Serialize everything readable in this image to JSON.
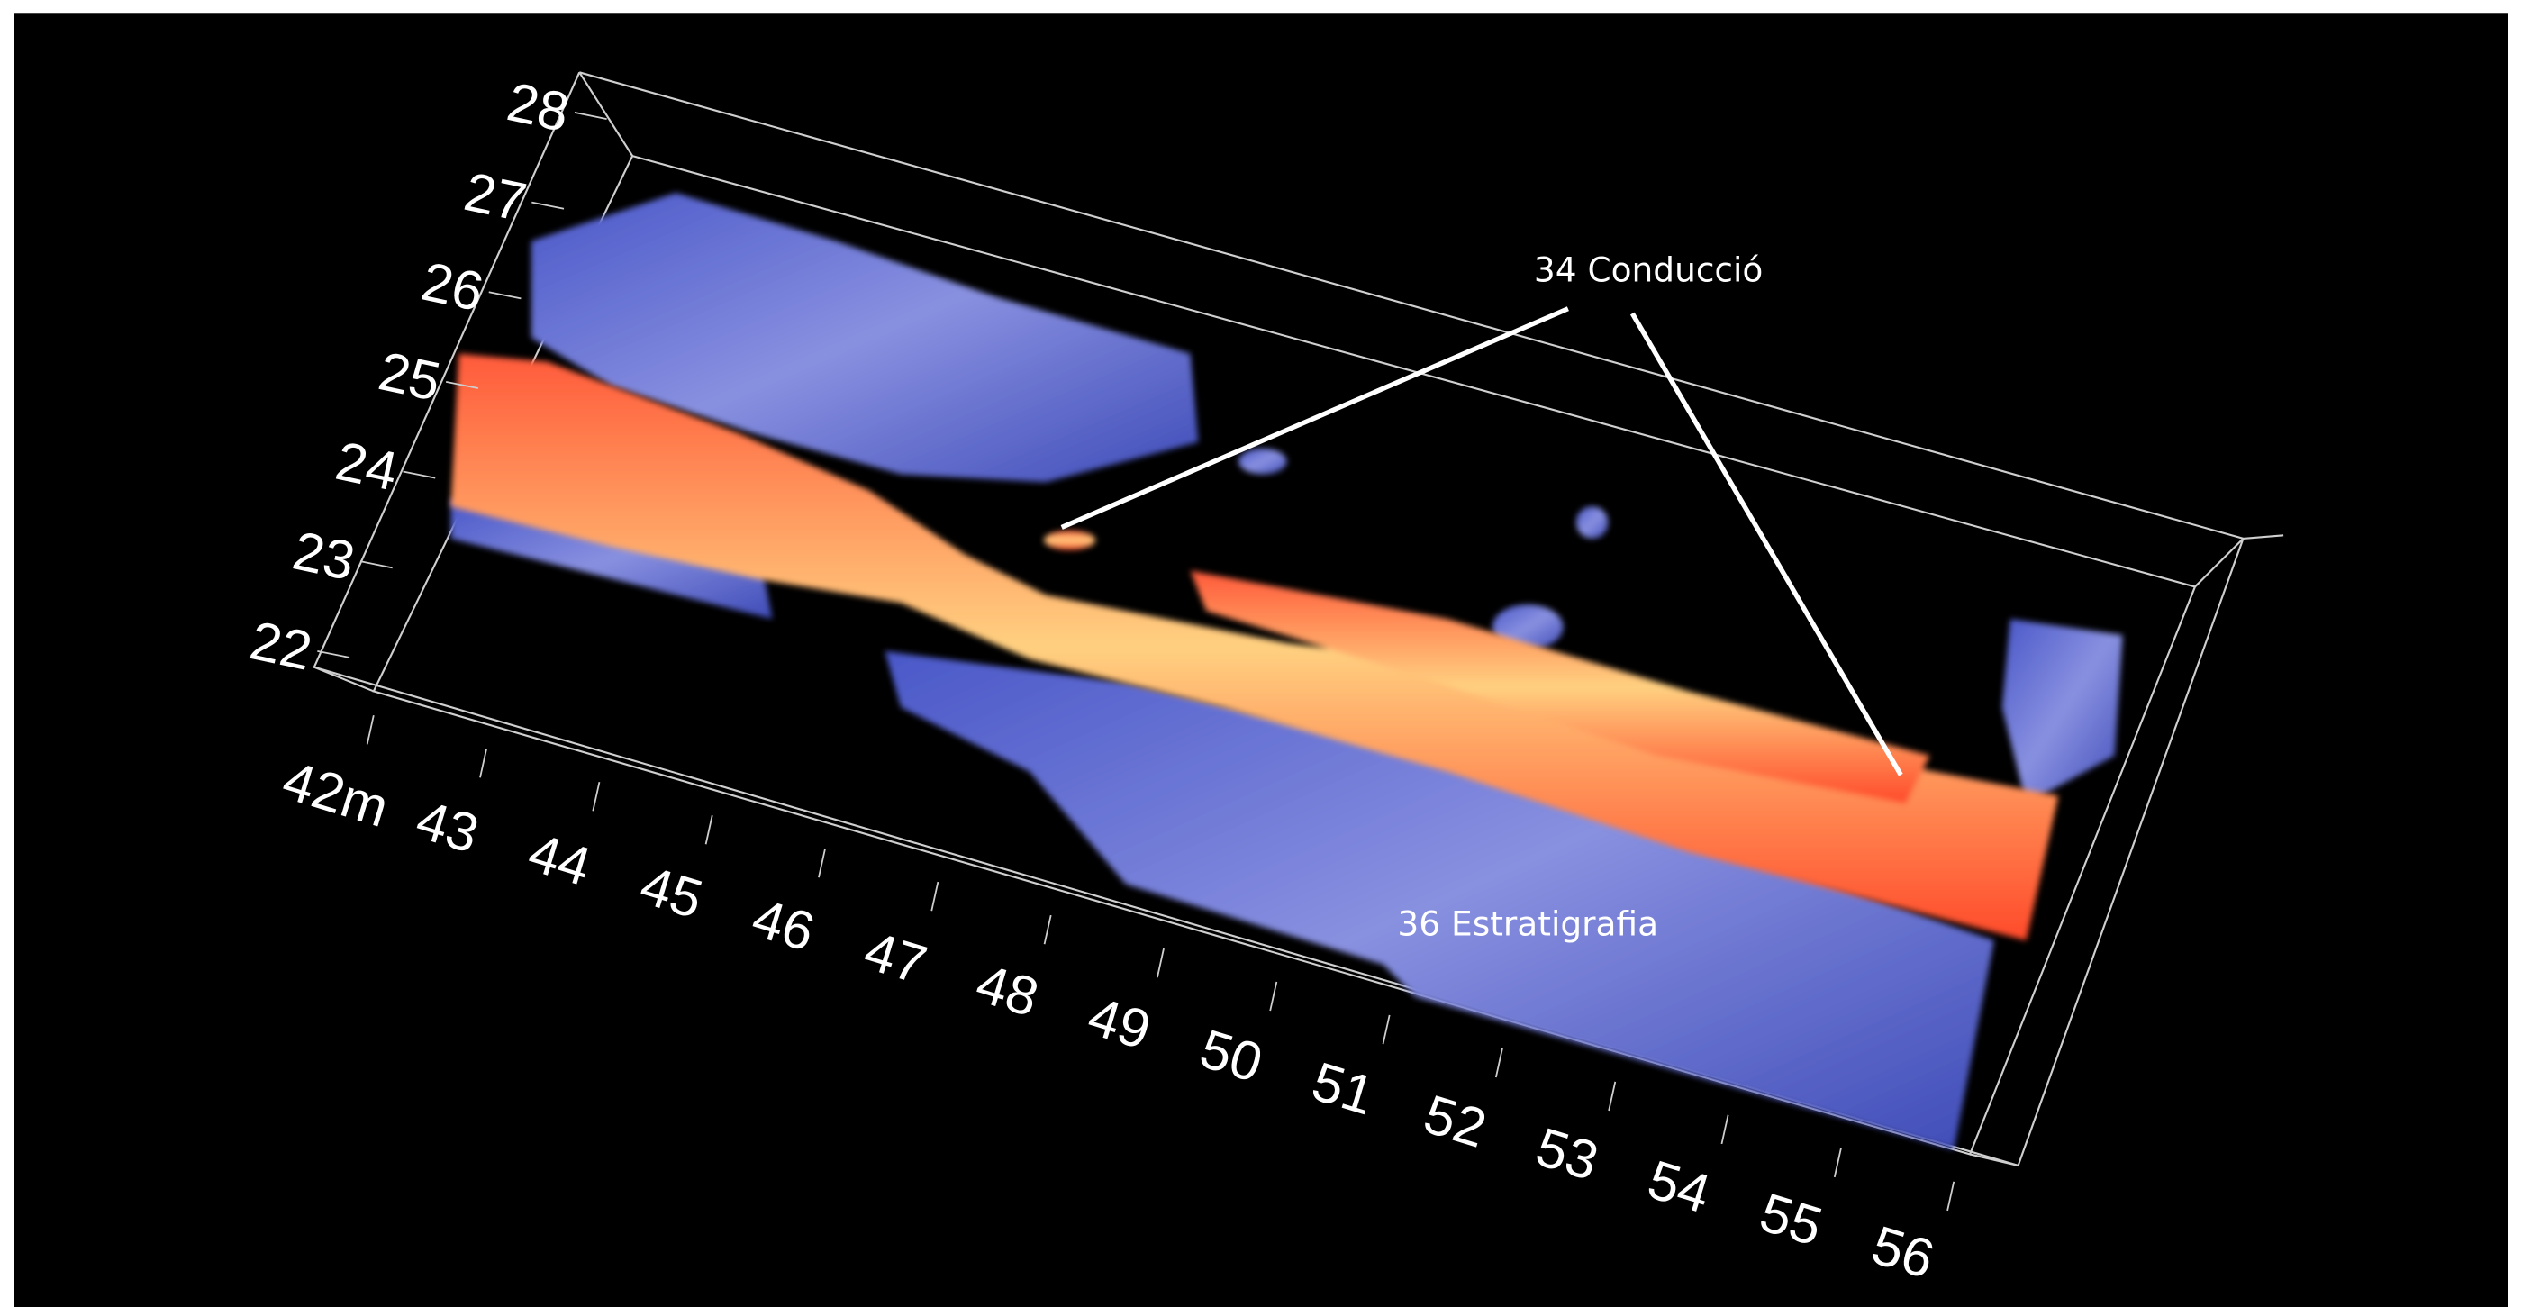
{
  "y_axis": {
    "labels": [
      "28",
      "27",
      "26",
      "25",
      "24",
      "23",
      "22"
    ]
  },
  "x_axis": {
    "labels": [
      "42m",
      "43",
      "44",
      "45",
      "46",
      "47",
      "48",
      "49",
      "50",
      "51",
      "52",
      "53",
      "54",
      "55",
      "56"
    ]
  },
  "annotations": {
    "conduction": "34 Conducció",
    "stratigraphy": "36 Estratigrafia"
  }
}
